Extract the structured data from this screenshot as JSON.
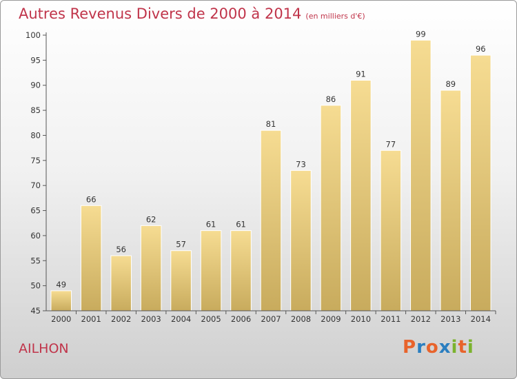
{
  "title": "Autres Revenus Divers de 2000 à 2014",
  "title_unit": "(en milliers d'€)",
  "commune": "AILHON",
  "logo": {
    "text": "Proxiti",
    "letters": [
      "P",
      "r",
      "o",
      "x",
      "i",
      "t",
      "i"
    ],
    "colors": [
      "#e8632b",
      "#2a7ec0",
      "#e8632b",
      "#2a7ec0",
      "#7bb32e",
      "#e8632b",
      "#7bb32e"
    ]
  },
  "colors": {
    "title": "#c0344a",
    "bar_top": "#f6dc92",
    "bar_bottom": "#c8ab5d"
  },
  "chart_data": {
    "type": "bar",
    "categories": [
      "2000",
      "2001",
      "2002",
      "2003",
      "2004",
      "2005",
      "2006",
      "2007",
      "2008",
      "2009",
      "2010",
      "2011",
      "2012",
      "2013",
      "2014"
    ],
    "values": [
      49,
      66,
      56,
      62,
      57,
      61,
      61,
      81,
      73,
      86,
      91,
      77,
      99,
      89,
      96
    ],
    "ylim": [
      45,
      100
    ],
    "yticks": [
      45,
      50,
      55,
      60,
      65,
      70,
      75,
      80,
      85,
      90,
      95,
      100
    ],
    "grid": false,
    "title": "Autres Revenus Divers de 2000 à 2014",
    "xlabel": "",
    "ylabel": ""
  }
}
